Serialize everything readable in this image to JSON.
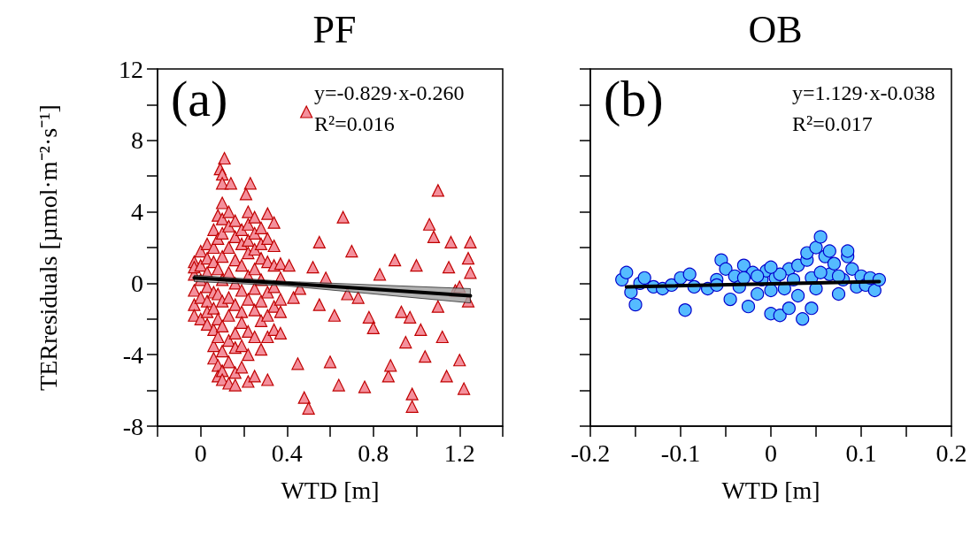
{
  "chart_data": [
    {
      "type": "scatter",
      "title": "PF",
      "xlabel": "WTD [m]",
      "ylabel": "TERresiduals [µmol·m⁻²·s⁻¹]",
      "xlim": [
        -0.2,
        1.4
      ],
      "xticks": [
        {
          "value": -0.2,
          "label": null
        },
        0,
        {
          "value": 0.2,
          "label": null
        },
        0.4,
        {
          "value": 0.6,
          "label": null
        },
        0.8,
        {
          "value": 1.0,
          "label": null
        },
        1.2,
        {
          "value": 1.4,
          "label": null
        }
      ],
      "ylim": [
        -8,
        12
      ],
      "yticks": [
        -8,
        {
          "value": -6,
          "label": null
        },
        -4,
        {
          "value": -2,
          "label": null
        },
        0,
        {
          "value": 2,
          "label": null
        },
        4,
        {
          "value": 6,
          "label": null
        },
        8,
        {
          "value": 10,
          "label": null
        },
        12
      ],
      "grid": false,
      "annotations": [
        "(a)",
        "y=-0.829·x-0.260",
        "R²=0.016"
      ],
      "series": [
        {
          "marker": "triangle",
          "color": "#f4909c",
          "x": [
            -0.03,
            -0.03,
            -0.03,
            -0.03,
            -0.03,
            -0.03,
            0.0,
            0.0,
            0.0,
            0.0,
            0.0,
            0.03,
            0.03,
            0.03,
            0.03,
            0.03,
            0.03,
            0.03,
            0.06,
            0.06,
            0.06,
            0.06,
            0.06,
            0.06,
            0.06,
            0.06,
            0.08,
            0.08,
            0.08,
            0.08,
            0.08,
            0.08,
            0.08,
            0.08,
            0.1,
            0.1,
            0.1,
            0.1,
            0.1,
            0.1,
            0.1,
            0.1,
            0.1,
            0.1,
            0.13,
            0.13,
            0.13,
            0.13,
            0.13,
            0.13,
            0.13,
            0.13,
            0.13,
            0.16,
            0.16,
            0.16,
            0.16,
            0.16,
            0.16,
            0.16,
            0.16,
            0.16,
            0.19,
            0.19,
            0.19,
            0.19,
            0.19,
            0.19,
            0.19,
            0.19,
            0.22,
            0.22,
            0.22,
            0.22,
            0.22,
            0.22,
            0.22,
            0.22,
            0.22,
            0.25,
            0.25,
            0.25,
            0.25,
            0.25,
            0.25,
            0.25,
            0.25,
            0.28,
            0.28,
            0.28,
            0.28,
            0.28,
            0.28,
            0.28,
            0.31,
            0.31,
            0.31,
            0.31,
            0.31,
            0.31,
            0.31,
            0.34,
            0.34,
            0.34,
            0.34,
            0.34,
            0.34,
            0.37,
            0.37,
            0.37,
            0.37,
            0.37,
            0.11,
            0.09,
            0.1,
            0.1,
            0.14,
            0.23,
            0.21,
            0.49,
            0.41,
            0.43,
            0.45,
            0.48,
            0.5,
            0.52,
            0.55,
            0.55,
            0.58,
            0.6,
            0.62,
            0.64,
            0.66,
            0.7,
            0.73,
            0.76,
            0.78,
            0.8,
            0.83,
            0.87,
            0.9,
            0.93,
            0.95,
            0.98,
            1.0,
            1.02,
            1.04,
            1.06,
            1.08,
            1.1,
            1.12,
            1.14,
            1.16,
            1.18,
            1.2,
            1.22,
            1.24,
            1.25,
            1.25,
            1.24,
            1.2,
            1.15,
            1.1,
            0.97,
            0.46,
            0.68,
            0.88,
            0.98
          ],
          "values": [
            1.2,
            0.5,
            -0.4,
            -1.2,
            -1.8,
            0.9,
            1.8,
            0.2,
            -0.8,
            -2.0,
            1.0,
            2.2,
            1.4,
            0.6,
            -0.2,
            -1.0,
            -1.6,
            -2.3,
            3.0,
            2.0,
            1.2,
            -0.5,
            -1.4,
            -2.6,
            -3.5,
            -4.2,
            3.8,
            2.5,
            0.8,
            -0.6,
            -2.0,
            -3.0,
            -4.6,
            -5.2,
            4.5,
            3.6,
            2.8,
            1.5,
            0.2,
            -1.0,
            -2.4,
            -3.8,
            -4.9,
            -5.4,
            4.0,
            3.2,
            2.0,
            0.6,
            -0.8,
            -1.8,
            -3.2,
            -4.4,
            -5.6,
            3.5,
            2.6,
            1.3,
            0.0,
            -1.2,
            -2.8,
            -3.6,
            -5.0,
            -5.7,
            3.0,
            2.2,
            1.0,
            -0.4,
            -1.6,
            -2.2,
            -3.5,
            -4.7,
            4.0,
            3.3,
            2.4,
            1.7,
            0.4,
            -0.9,
            -2.7,
            -4.0,
            -5.5,
            3.7,
            2.8,
            1.9,
            0.8,
            -0.3,
            -1.5,
            -3.0,
            -5.2,
            3.1,
            2.2,
            1.4,
            0.2,
            -1.0,
            -2.1,
            -3.7,
            3.9,
            2.5,
            1.2,
            -0.5,
            -1.8,
            -3.0,
            -5.4,
            3.4,
            2.1,
            1.0,
            -0.2,
            -1.3,
            -2.6,
            1.1,
            0.3,
            -0.9,
            -1.6,
            -2.8,
            7.0,
            6.4,
            6.1,
            5.6,
            5.6,
            5.6,
            5.0,
            9.6,
            1.0,
            -0.8,
            -4.5,
            -6.4,
            -7.0,
            0.9,
            2.3,
            -1.2,
            0.3,
            -4.4,
            -1.8,
            -5.7,
            3.7,
            1.8,
            -0.8,
            -5.8,
            -1.9,
            -2.5,
            0.5,
            -5.2,
            1.3,
            -1.6,
            -3.3,
            -6.2,
            1.0,
            -2.6,
            -4.1,
            3.3,
            2.6,
            5.2,
            -3.0,
            -5.2,
            2.3,
            -0.4,
            -4.3,
            -5.9,
            1.4,
            2.3,
            0.6,
            -1.0,
            -0.2,
            0.9,
            -1.3,
            -1.9,
            -0.3,
            -0.6,
            -4.6,
            -6.9
          ]
        },
        {
          "type": "line",
          "marker": "none",
          "color": "#000000",
          "x": [
            -0.03,
            0.4,
            1.25
          ],
          "values": [
            0.3,
            -0.01,
            -0.7
          ],
          "lower": [
            0.1,
            -0.15,
            -1.1
          ],
          "upper": [
            0.45,
            0.1,
            -0.3
          ]
        }
      ]
    },
    {
      "type": "scatter",
      "title": "OB",
      "xlabel": "WTD [m]",
      "tick_labels": "x",
      "xlim": [
        -0.2,
        0.2
      ],
      "xticks": [
        -0.2,
        {
          "value": -0.15,
          "label": null
        },
        -0.1,
        {
          "value": -0.05,
          "label": null
        },
        0,
        {
          "value": 0.05,
          "label": null
        },
        0.1,
        {
          "value": 0.15,
          "label": null
        },
        0.2
      ],
      "ylim": [
        -8,
        12
      ],
      "yticks": [
        -8,
        -6,
        -4,
        -2,
        0,
        2,
        4,
        6,
        8,
        10,
        12
      ],
      "grid": false,
      "annotations": [
        "(b)",
        "y=1.129·x-0.038",
        "R²=0.017"
      ],
      "series": [
        {
          "marker": "circle",
          "color": "#55bbff",
          "x": [
            -0.165,
            -0.16,
            -0.155,
            -0.15,
            -0.145,
            -0.14,
            -0.13,
            -0.12,
            -0.11,
            -0.1,
            -0.09,
            -0.085,
            -0.095,
            -0.07,
            -0.06,
            -0.055,
            -0.05,
            -0.045,
            -0.04,
            -0.035,
            -0.03,
            -0.025,
            -0.02,
            -0.015,
            -0.01,
            -0.005,
            0.0,
            0.0,
            0.005,
            0.01,
            0.015,
            0.02,
            0.02,
            0.025,
            0.03,
            0.03,
            0.035,
            0.04,
            0.04,
            0.045,
            0.05,
            0.05,
            0.055,
            0.06,
            0.065,
            0.065,
            0.07,
            0.075,
            0.08,
            0.085,
            0.085,
            0.09,
            0.095,
            0.1,
            0.105,
            0.11,
            0.115,
            0.12,
            -0.015,
            0.01,
            0.045,
            0.055,
            0.075,
            -0.06,
            -0.03,
            0.0
          ],
          "values": [
            0.2,
            0.6,
            -0.5,
            -1.2,
            0.0,
            0.3,
            -0.2,
            -0.3,
            -0.1,
            0.3,
            0.5,
            -0.2,
            -1.5,
            -0.3,
            0.2,
            1.3,
            0.8,
            -0.9,
            0.4,
            -0.2,
            1.0,
            -1.3,
            0.6,
            -0.6,
            0.2,
            0.7,
            -0.4,
            -1.7,
            0.3,
            -1.8,
            -0.3,
            0.8,
            -1.4,
            0.2,
            -0.7,
            1.0,
            -2.0,
            1.3,
            1.7,
            -1.4,
            2.0,
            -0.3,
            2.6,
            1.5,
            0.5,
            1.8,
            1.1,
            -0.6,
            0.2,
            1.5,
            1.8,
            0.8,
            -0.2,
            0.4,
            -0.1,
            0.3,
            -0.4,
            0.2,
            0.4,
            0.5,
            0.3,
            0.6,
            0.4,
            -0.1,
            0.3,
            0.9
          ]
        },
        {
          "type": "line",
          "marker": "none",
          "color": "#000000",
          "x": [
            -0.16,
            0.12
          ],
          "values": [
            -0.2,
            0.1
          ]
        }
      ]
    }
  ]
}
